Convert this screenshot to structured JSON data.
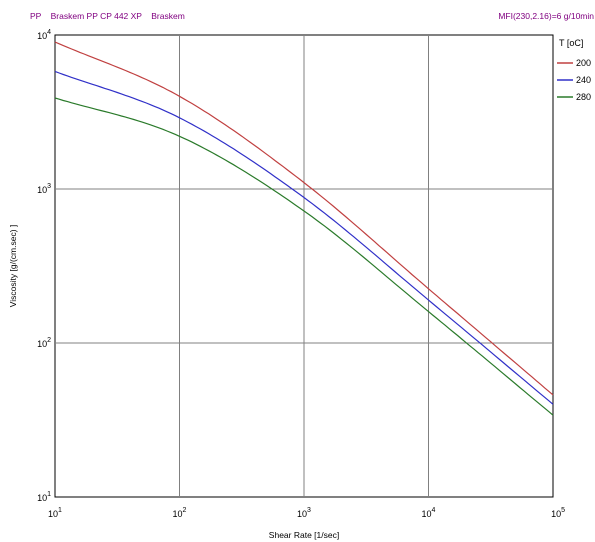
{
  "header": {
    "left": "PP    Braskem PP CP 442 XP    Braskem",
    "right": "MFI(230,2.16)=6 g/10min"
  },
  "colors": {
    "header_text": "#800080",
    "grid": "#808080",
    "plot_bg": "#ffffff"
  },
  "chart_data": {
    "type": "line",
    "xscale": "log",
    "yscale": "log",
    "xlabel": "Shear Rate [1/sec]",
    "ylabel": "Viscosity [g/(cm.sec) ]",
    "xlim": [
      10,
      100000
    ],
    "ylim": [
      10,
      10000
    ],
    "grid": true,
    "legend_position": "top-right",
    "legend_title": "T [oC]",
    "x": [
      10,
      100,
      1000,
      10000,
      100000
    ],
    "series": [
      {
        "name": "200",
        "color": "#c04040",
        "values": [
          9000,
          4000,
          1100,
          225,
          46
        ]
      },
      {
        "name": "240",
        "color": "#3030c8",
        "values": [
          5800,
          2900,
          880,
          190,
          40
        ]
      },
      {
        "name": "280",
        "color": "#2a7a2a",
        "values": [
          3900,
          2200,
          720,
          160,
          34
        ]
      }
    ]
  }
}
